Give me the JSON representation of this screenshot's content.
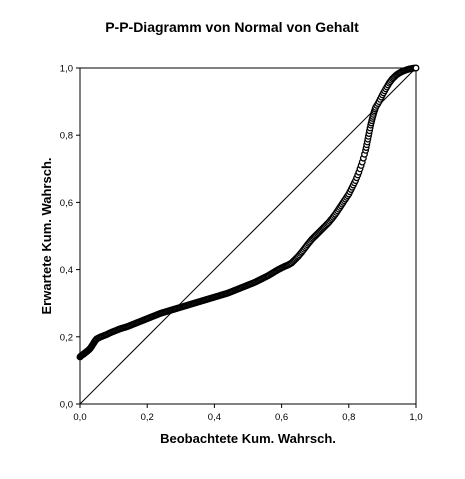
{
  "chart_data": {
    "type": "scatter",
    "title": "P-P-Diagramm von Normal von Gehalt",
    "xlabel": "Beobachtete Kum. Wahrsch.",
    "ylabel": "Erwartete Kum. Wahrsch.",
    "xlim": [
      0.0,
      1.0
    ],
    "ylim": [
      0.0,
      1.0
    ],
    "x_ticks": [
      0.0,
      0.2,
      0.4,
      0.6,
      0.8,
      1.0
    ],
    "y_ticks": [
      0.0,
      0.2,
      0.4,
      0.6,
      0.8,
      1.0
    ],
    "x_tick_labels": [
      "0,0",
      "0,2",
      "0,4",
      "0,6",
      "0,8",
      "1,0"
    ],
    "y_tick_labels": [
      "0,0",
      "0,2",
      "0,4",
      "0,6",
      "0,8",
      "1,0"
    ],
    "grid": false,
    "reference_line": {
      "x": [
        0.0,
        1.0
      ],
      "y": [
        0.0,
        1.0
      ]
    },
    "series": [
      {
        "marker": "open-circle",
        "color": "#000000",
        "points": [
          [
            0.0,
            0.14
          ],
          [
            0.005,
            0.145
          ],
          [
            0.01,
            0.148
          ],
          [
            0.015,
            0.152
          ],
          [
            0.02,
            0.156
          ],
          [
            0.025,
            0.16
          ],
          [
            0.03,
            0.165
          ],
          [
            0.035,
            0.172
          ],
          [
            0.04,
            0.18
          ],
          [
            0.045,
            0.188
          ],
          [
            0.05,
            0.194
          ],
          [
            0.06,
            0.199
          ],
          [
            0.07,
            0.203
          ],
          [
            0.08,
            0.207
          ],
          [
            0.09,
            0.212
          ],
          [
            0.1,
            0.216
          ],
          [
            0.11,
            0.22
          ],
          [
            0.12,
            0.224
          ],
          [
            0.13,
            0.227
          ],
          [
            0.14,
            0.23
          ],
          [
            0.15,
            0.234
          ],
          [
            0.16,
            0.238
          ],
          [
            0.17,
            0.242
          ],
          [
            0.18,
            0.246
          ],
          [
            0.19,
            0.25
          ],
          [
            0.2,
            0.254
          ],
          [
            0.21,
            0.258
          ],
          [
            0.22,
            0.262
          ],
          [
            0.23,
            0.266
          ],
          [
            0.24,
            0.27
          ],
          [
            0.25,
            0.273
          ],
          [
            0.26,
            0.276
          ],
          [
            0.27,
            0.279
          ],
          [
            0.28,
            0.282
          ],
          [
            0.29,
            0.285
          ],
          [
            0.3,
            0.288
          ],
          [
            0.31,
            0.291
          ],
          [
            0.32,
            0.294
          ],
          [
            0.33,
            0.297
          ],
          [
            0.34,
            0.3
          ],
          [
            0.35,
            0.303
          ],
          [
            0.36,
            0.306
          ],
          [
            0.37,
            0.309
          ],
          [
            0.38,
            0.312
          ],
          [
            0.39,
            0.315
          ],
          [
            0.4,
            0.318
          ],
          [
            0.41,
            0.321
          ],
          [
            0.42,
            0.324
          ],
          [
            0.43,
            0.327
          ],
          [
            0.44,
            0.33
          ],
          [
            0.45,
            0.334
          ],
          [
            0.46,
            0.338
          ],
          [
            0.47,
            0.342
          ],
          [
            0.48,
            0.346
          ],
          [
            0.49,
            0.35
          ],
          [
            0.5,
            0.354
          ],
          [
            0.51,
            0.358
          ],
          [
            0.52,
            0.362
          ],
          [
            0.53,
            0.367
          ],
          [
            0.54,
            0.372
          ],
          [
            0.55,
            0.377
          ],
          [
            0.56,
            0.382
          ],
          [
            0.57,
            0.388
          ],
          [
            0.58,
            0.394
          ],
          [
            0.59,
            0.4
          ],
          [
            0.6,
            0.405
          ],
          [
            0.61,
            0.41
          ],
          [
            0.62,
            0.414
          ],
          [
            0.63,
            0.42
          ],
          [
            0.64,
            0.43
          ],
          [
            0.65,
            0.44
          ],
          [
            0.66,
            0.452
          ],
          [
            0.67,
            0.465
          ],
          [
            0.68,
            0.478
          ],
          [
            0.69,
            0.49
          ],
          [
            0.7,
            0.5
          ],
          [
            0.71,
            0.51
          ],
          [
            0.72,
            0.52
          ],
          [
            0.73,
            0.53
          ],
          [
            0.74,
            0.54
          ],
          [
            0.75,
            0.552
          ],
          [
            0.76,
            0.565
          ],
          [
            0.77,
            0.58
          ],
          [
            0.78,
            0.595
          ],
          [
            0.79,
            0.61
          ],
          [
            0.8,
            0.625
          ],
          [
            0.81,
            0.645
          ],
          [
            0.82,
            0.665
          ],
          [
            0.83,
            0.69
          ],
          [
            0.84,
            0.72
          ],
          [
            0.85,
            0.755
          ],
          [
            0.855,
            0.78
          ],
          [
            0.86,
            0.805
          ],
          [
            0.865,
            0.83
          ],
          [
            0.87,
            0.85
          ],
          [
            0.875,
            0.868
          ],
          [
            0.88,
            0.883
          ],
          [
            0.89,
            0.9
          ],
          [
            0.9,
            0.92
          ],
          [
            0.91,
            0.938
          ],
          [
            0.92,
            0.955
          ],
          [
            0.93,
            0.968
          ],
          [
            0.94,
            0.978
          ],
          [
            0.95,
            0.985
          ],
          [
            0.96,
            0.99
          ],
          [
            0.97,
            0.994
          ],
          [
            0.98,
            0.997
          ],
          [
            0.99,
            0.999
          ],
          [
            1.0,
            1.0
          ]
        ]
      }
    ]
  }
}
